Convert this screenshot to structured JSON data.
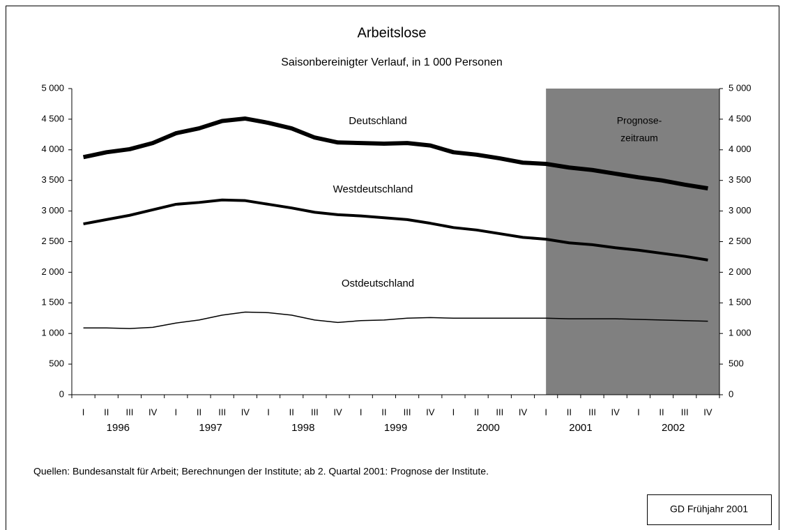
{
  "chart_data": {
    "type": "line",
    "title": "Arbeitslose",
    "subtitle": "Saisonbereinigter Verlauf, in 1 000 Personen",
    "categories": [
      "I",
      "II",
      "III",
      "IV",
      "I",
      "II",
      "III",
      "IV",
      "I",
      "II",
      "III",
      "IV",
      "I",
      "II",
      "III",
      "IV",
      "I",
      "II",
      "III",
      "IV",
      "I",
      "II",
      "III",
      "IV",
      "I",
      "II",
      "III",
      "IV"
    ],
    "years": [
      "1996",
      "1997",
      "1998",
      "1999",
      "2000",
      "2001",
      "2002"
    ],
    "series": [
      {
        "name": "Deutschland",
        "color": "#000000",
        "width": 6,
        "values": [
          3880,
          3960,
          4010,
          4110,
          4270,
          4350,
          4470,
          4510,
          4440,
          4350,
          4200,
          4120,
          4110,
          4100,
          4110,
          4070,
          3960,
          3920,
          3860,
          3790,
          3770,
          3710,
          3670,
          3610,
          3550,
          3500,
          3430,
          3370
        ]
      },
      {
        "name": "Westdeutschland",
        "color": "#000000",
        "width": 4,
        "values": [
          2790,
          2860,
          2930,
          3020,
          3110,
          3140,
          3180,
          3170,
          3110,
          3050,
          2980,
          2940,
          2920,
          2890,
          2860,
          2800,
          2730,
          2690,
          2630,
          2570,
          2540,
          2480,
          2450,
          2400,
          2360,
          2310,
          2260,
          2200
        ]
      },
      {
        "name": "Ostdeutschland",
        "color": "#000000",
        "width": 1.5,
        "values": [
          1090,
          1090,
          1080,
          1100,
          1170,
          1220,
          1300,
          1350,
          1340,
          1300,
          1220,
          1180,
          1210,
          1220,
          1250,
          1260,
          1250,
          1250,
          1250,
          1250,
          1250,
          1240,
          1240,
          1240,
          1230,
          1220,
          1210,
          1200
        ]
      }
    ],
    "ylim": [
      0,
      5000
    ],
    "yticks": [
      0,
      500,
      {
        "value": 1000,
        "label": "1 000"
      },
      {
        "value": 1500,
        "label": "1 500"
      },
      {
        "value": 2000,
        "label": "2 000"
      },
      {
        "value": 2500,
        "label": "2 500"
      },
      {
        "value": 3000,
        "label": "3 000"
      },
      {
        "value": 3500,
        "label": "3 500"
      },
      {
        "value": 4000,
        "label": "4 000"
      },
      {
        "value": 4500,
        "label": "4 500"
      },
      {
        "value": 5000,
        "label": "5 000"
      }
    ],
    "forecast": {
      "label_lines": [
        "Prognose-",
        "zeitraum"
      ],
      "from_category": 21,
      "color": "#808080"
    },
    "source": "Quellen: Bundesanstalt für Arbeit; Berechnungen der Institute; ab 2. Quartal 2001: Prognose der Institute.",
    "badge": "GD Frühjahr 2001"
  }
}
